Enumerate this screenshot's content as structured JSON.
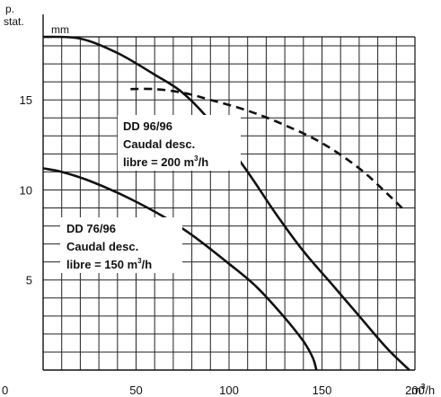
{
  "chart_data": {
    "type": "line",
    "ylabel_lines": [
      "p.",
      "stat."
    ],
    "yunit": "mm",
    "xunit": "m",
    "xunit_sup": "3",
    "xunit_suffix": "/h",
    "xlim": [
      0,
      200
    ],
    "ylim": [
      0,
      18.5
    ],
    "xticks": [
      0,
      50,
      100,
      150,
      200
    ],
    "xtick_labels": [
      "0",
      "50",
      "100",
      "150",
      "200"
    ],
    "yticks": [
      5,
      10,
      15
    ],
    "ytick_labels": [
      "5",
      "10",
      "15"
    ],
    "grid": true,
    "series": [
      {
        "style": "solid",
        "x": [
          0,
          20,
          40,
          60,
          75,
          90,
          110,
          125,
          140,
          155,
          170,
          185,
          197
        ],
        "y": [
          18.5,
          18.4,
          17.6,
          16.4,
          15.4,
          13.8,
          11.0,
          8.7,
          6.6,
          4.8,
          3.0,
          1.2,
          0
        ]
      },
      {
        "style": "dashed",
        "x": [
          47,
          60,
          75,
          90,
          110,
          130,
          150,
          170,
          185,
          195
        ],
        "y": [
          15.6,
          15.6,
          15.4,
          15.0,
          14.4,
          13.6,
          12.6,
          11.2,
          9.8,
          8.8
        ]
      },
      {
        "style": "solid",
        "x": [
          0,
          10,
          25,
          45,
          65,
          80,
          100,
          115,
          130,
          140,
          145,
          147
        ],
        "y": [
          11.2,
          11.0,
          10.5,
          9.6,
          8.5,
          7.5,
          5.9,
          4.6,
          2.9,
          1.6,
          0.7,
          0
        ]
      }
    ],
    "annotations": [
      {
        "lines": [
          "DD 96/96",
          "Caudal desc.",
          "libre = 200 m"
        ],
        "sup": "3",
        "suffix": "/h"
      },
      {
        "lines": [
          "DD 76/96",
          "Caudal desc.",
          "libre = 150 m"
        ],
        "sup": "3",
        "suffix": "/h"
      }
    ]
  }
}
